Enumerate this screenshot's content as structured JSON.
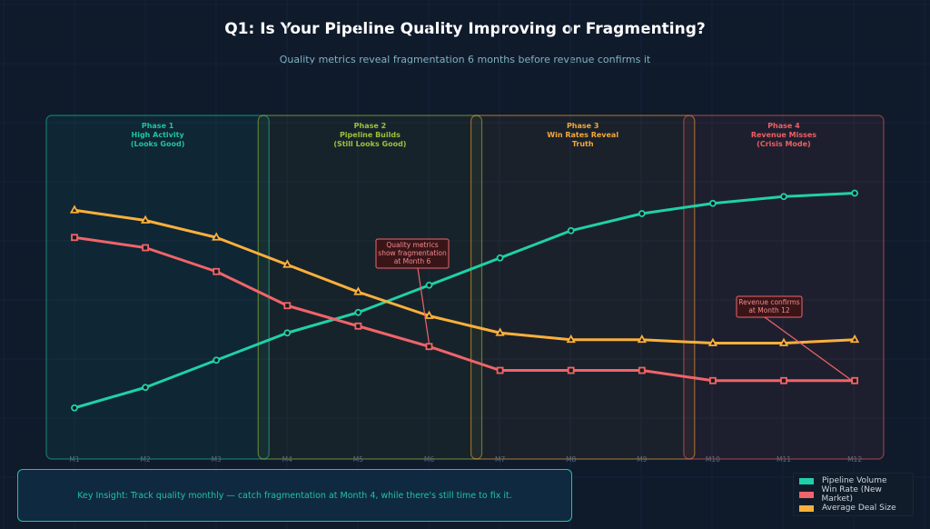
{
  "title": "Q1: Is Your Pipeline Quality Improving or Fragmenting?",
  "subtitle": "Quality metrics reveal fragmentation 6 months before revenue confirms it",
  "insight": "Key Insight:  Track quality monthly — catch fragmentation at Month 4, while there's still time to fix it.",
  "chart_data": {
    "type": "line",
    "categories": [
      "M1",
      "M2",
      "M3",
      "M4",
      "M5",
      "M6",
      "M7",
      "M8",
      "M9",
      "M10",
      "M11",
      "M12"
    ],
    "ylim": [
      0,
      100
    ],
    "grid": true,
    "legend_position": "bottom-right",
    "series": [
      {
        "name": "Pipeline Volume",
        "color": "#1fd1a8",
        "marker": "circle",
        "values": [
          15,
          21,
          29,
          37,
          43,
          51,
          59,
          67,
          72,
          75,
          77,
          78
        ]
      },
      {
        "name": "Win Rate (New Market)",
        "color": "#f0646a",
        "marker": "square",
        "values": [
          65,
          62,
          55,
          45,
          39,
          33,
          26,
          26,
          26,
          23,
          23,
          23
        ]
      },
      {
        "name": "Average Deal Size",
        "color": "#fbb03b",
        "marker": "triangle",
        "values": [
          73,
          70,
          65,
          57,
          49,
          42,
          37,
          35,
          35,
          34,
          34,
          35
        ]
      }
    ],
    "phases": [
      {
        "lines": [
          "Phase 1",
          "High Activity",
          "(Looks Good)"
        ],
        "color": "#1fc3a0",
        "range": [
          "M1",
          "M3"
        ]
      },
      {
        "lines": [
          "Phase 2",
          "Pipeline Builds",
          "(Still Looks Good)"
        ],
        "color": "#9ac33a",
        "range": [
          "M4",
          "M6"
        ]
      },
      {
        "lines": [
          "Phase 3",
          "Win Rates Reveal",
          "Truth"
        ],
        "color": "#f4a83a",
        "range": [
          "M7",
          "M9"
        ]
      },
      {
        "lines": [
          "Phase 4",
          "Revenue Misses",
          "(Crisis Mode)"
        ],
        "color": "#ef5f63",
        "range": [
          "M10",
          "M12"
        ]
      }
    ],
    "annotations": [
      {
        "lines": [
          "Quality metrics",
          "show fragmentation",
          "at Month 6"
        ],
        "target": "M6",
        "series": "Win Rate (New Market)"
      },
      {
        "lines": [
          "Revenue confirms",
          "at Month 12"
        ],
        "target": "M12",
        "series": "Win Rate (New Market)"
      }
    ]
  }
}
